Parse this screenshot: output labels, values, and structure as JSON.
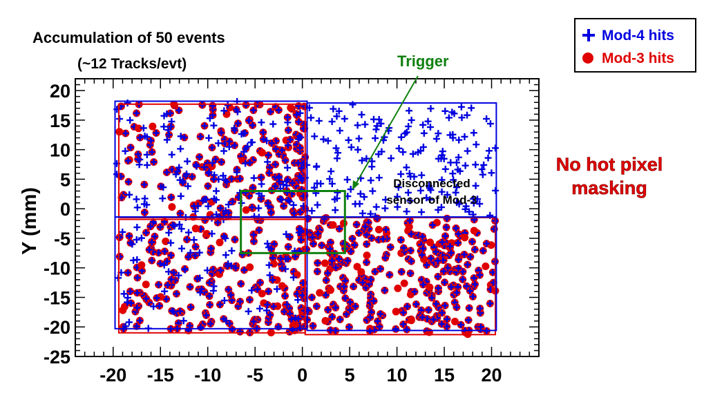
{
  "chart_data": {
    "type": "scatter",
    "title": "Accumulation of 50 events",
    "subtitle": "(~12 Tracks/evt)",
    "xlabel": "",
    "ylabel": "Y (mm)",
    "xlim": [
      -24,
      25
    ],
    "ylim": [
      -25,
      22
    ],
    "x_ticks": [
      "-20",
      "-15",
      "-10",
      "-5",
      "0",
      "5",
      "10",
      "15",
      "20"
    ],
    "y_ticks": [
      "20",
      "15",
      "10",
      "5",
      "0",
      "-5",
      "-10",
      "-15",
      "-20",
      "-25"
    ],
    "grid": false,
    "legend_placement": "top-right, outside plot",
    "series": [
      {
        "name": "Mod-4 hits",
        "marker": "cross",
        "color": "#0000e0"
      },
      {
        "name": "Mod-3 hits",
        "marker": "circle",
        "color": "#e00000"
      }
    ],
    "annotations": {
      "trigger_label": "Trigger",
      "disconnected_line1": "Disconnected",
      "disconnected_line2": "sensor of Mod-3",
      "side_note_line1": "No hot pixel",
      "side_note_line2": "masking"
    },
    "regions": {
      "mod4": [
        {
          "x0": -19.8,
          "x1": 0.5,
          "y0": -1.4,
          "y1": 18.2
        },
        {
          "x0": 0.5,
          "x1": 20.5,
          "y0": -1.4,
          "y1": 17.9
        },
        {
          "x0": -19.8,
          "x1": 0.5,
          "y0": -20.3,
          "y1": -1.4
        },
        {
          "x0": 0.5,
          "x1": 20.5,
          "y0": -20.6,
          "y1": -1.4
        }
      ],
      "mod3": [
        {
          "x0": -19.4,
          "x1": 0.3,
          "y0": -1.5,
          "y1": 17.7
        },
        {
          "x0": 0.3,
          "x1": 20.4,
          "y0": -21.3,
          "y1": -1.5
        },
        {
          "x0": -19.4,
          "x1": 0.3,
          "y0": -21.0,
          "y1": -1.8
        }
      ],
      "trigger": {
        "x0": -6.5,
        "x1": 4.5,
        "y0": -7.5,
        "y1": 3.0
      }
    },
    "point_fields": {
      "mod4_cross": {
        "region_a": {
          "x": [
            -19.8,
            0.5
          ],
          "y": [
            -1.4,
            18.2
          ],
          "count": 110
        },
        "region_b": {
          "x": [
            0.5,
            20.5
          ],
          "y": [
            -1.4,
            17.9
          ],
          "count": 170
        },
        "region_c": {
          "x": [
            -19.8,
            0.5
          ],
          "y": [
            -20.3,
            -1.4
          ],
          "count": 70
        }
      },
      "mod3_on_mod4_circle": {
        "region_a": {
          "x": [
            -19.4,
            0.3
          ],
          "y": [
            -1.5,
            17.7
          ],
          "count": 200
        },
        "region_c": {
          "x": [
            -19.4,
            0.3
          ],
          "y": [
            -21.0,
            -1.8
          ],
          "count": 210
        },
        "region_d": {
          "x": [
            0.3,
            20.4
          ],
          "y": [
            -21.3,
            -1.5
          ],
          "count": 300
        }
      }
    }
  },
  "legend": {
    "mod4_label": "Mod-4 hits",
    "mod3_label": "Mod-3 hits"
  },
  "colors": {
    "blue": "#0000e0",
    "red": "#e00000",
    "green": "#108010",
    "point_fill": "#4a3cb4"
  }
}
